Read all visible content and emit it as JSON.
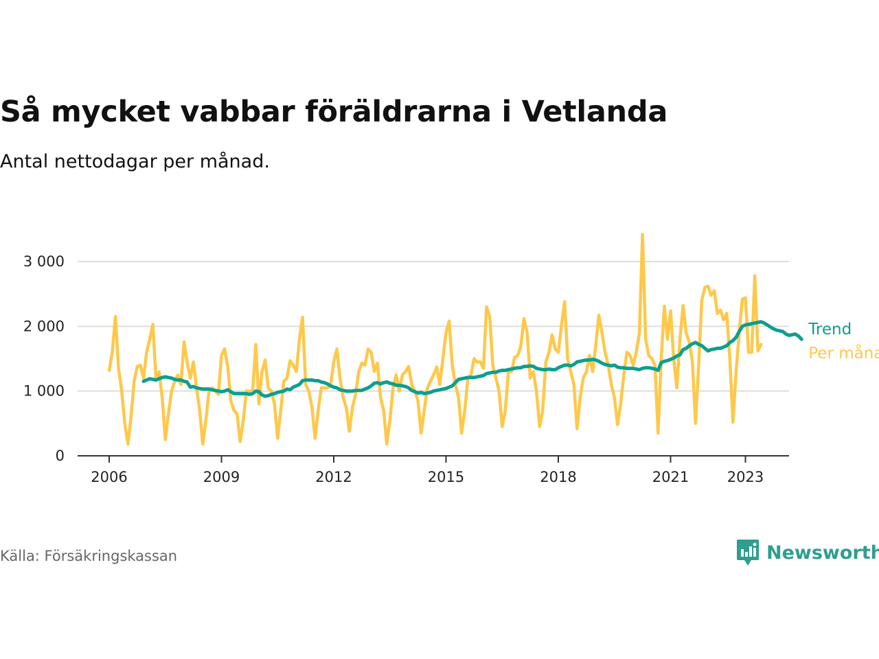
{
  "title": "Så mycket vabbar föräldrarna i Vetlanda",
  "subtitle": "Antal nettodagar per månad.",
  "source": "Källa: Försäkringskassan",
  "brand": {
    "name": "Newsworthy",
    "icon": "newsworthy-logo-icon",
    "color": "#2f9e8f"
  },
  "colors": {
    "trend": "#0e9e8e",
    "per_month": "#ffc84a",
    "grid": "#dddddd",
    "axis": "#333333"
  },
  "chart_data": {
    "type": "line",
    "title": "Så mycket vabbar föräldrarna i Vetlanda",
    "subtitle": "Antal nettodagar per månad.",
    "xlabel": "",
    "ylabel": "",
    "x_start": "2006-01",
    "x_interval": "month",
    "x_ticks": [
      2006,
      2009,
      2012,
      2015,
      2018,
      2021,
      2023
    ],
    "x_tick_labels": [
      "2006",
      "2009",
      "2012",
      "2015",
      "2018",
      "2021",
      "2023"
    ],
    "y_ticks": [
      0,
      1000,
      2000,
      3000
    ],
    "y_tick_labels": [
      "0",
      "1 000",
      "2 000",
      "3 000"
    ],
    "ylim": [
      0,
      3000
    ],
    "grid": true,
    "legend": "series labels at right end of lines",
    "series": [
      {
        "name": "Trend",
        "color": "#0e9e8e",
        "start": "2006-12",
        "values": [
          1150,
          1170,
          1190,
          1180,
          1170,
          1190,
          1210,
          1220,
          1210,
          1200,
          1180,
          1170,
          1170,
          1150,
          1140,
          1060,
          1070,
          1050,
          1040,
          1030,
          1030,
          1030,
          1020,
          1010,
          1000,
          990,
          1000,
          1020,
          990,
          960,
          960,
          960,
          960,
          960,
          950,
          960,
          1000,
          990,
          940,
          920,
          930,
          950,
          960,
          980,
          990,
          1000,
          1030,
          1020,
          1060,
          1080,
          1100,
          1160,
          1170,
          1170,
          1170,
          1160,
          1160,
          1140,
          1130,
          1110,
          1080,
          1060,
          1050,
          1020,
          1010,
          1000,
          1000,
          1000,
          1010,
          1010,
          1010,
          1030,
          1050,
          1080,
          1120,
          1130,
          1110,
          1130,
          1140,
          1120,
          1110,
          1090,
          1090,
          1080,
          1070,
          1050,
          1010,
          990,
          970,
          980,
          960,
          970,
          980,
          1000,
          1010,
          1020,
          1030,
          1040,
          1060,
          1080,
          1130,
          1180,
          1190,
          1200,
          1210,
          1210,
          1210,
          1220,
          1230,
          1240,
          1270,
          1280,
          1290,
          1290,
          1310,
          1320,
          1320,
          1330,
          1340,
          1350,
          1360,
          1360,
          1380,
          1380,
          1390,
          1380,
          1350,
          1340,
          1330,
          1330,
          1340,
          1330,
          1330,
          1360,
          1380,
          1400,
          1400,
          1390,
          1410,
          1450,
          1460,
          1470,
          1480,
          1480,
          1490,
          1480,
          1460,
          1430,
          1410,
          1400,
          1390,
          1400,
          1370,
          1360,
          1360,
          1350,
          1350,
          1350,
          1340,
          1330,
          1350,
          1360,
          1360,
          1350,
          1340,
          1320,
          1440,
          1460,
          1470,
          1490,
          1510,
          1540,
          1560,
          1640,
          1660,
          1700,
          1730,
          1750,
          1720,
          1700,
          1660,
          1620,
          1640,
          1650,
          1660,
          1660,
          1680,
          1700,
          1750,
          1780,
          1830,
          1920,
          2000,
          2020,
          2030,
          2040,
          2050,
          2060,
          2070,
          2050,
          2020,
          1990,
          1960,
          1940,
          1930,
          1920,
          1880,
          1860,
          1870,
          1880,
          1850,
          1800
        ]
      },
      {
        "name": "Per månad",
        "color": "#ffc84a",
        "start": "2006-01",
        "values": [
          1320,
          1600,
          2150,
          1350,
          1000,
          500,
          180,
          600,
          1150,
          1380,
          1400,
          1200,
          1600,
          1800,
          2030,
          1200,
          1300,
          900,
          250,
          650,
          1000,
          1150,
          1250,
          1100,
          1760,
          1450,
          1200,
          1450,
          1050,
          700,
          180,
          550,
          1000,
          1050,
          1000,
          950,
          1550,
          1650,
          1380,
          850,
          700,
          650,
          220,
          550,
          1000,
          1000,
          1000,
          1720,
          800,
          1300,
          1480,
          1050,
          1000,
          800,
          270,
          700,
          1150,
          1200,
          1470,
          1400,
          1300,
          1800,
          2140,
          1100,
          1000,
          750,
          270,
          700,
          1050,
          1050,
          1050,
          1100,
          1450,
          1650,
          1200,
          900,
          750,
          380,
          750,
          950,
          1300,
          1430,
          1400,
          1650,
          1600,
          1300,
          1430,
          900,
          700,
          180,
          550,
          1050,
          1250,
          1000,
          1250,
          1300,
          1380,
          1100,
          1000,
          850,
          350,
          700,
          1050,
          1150,
          1250,
          1370,
          1100,
          1500,
          1900,
          2080,
          1400,
          1100,
          900,
          350,
          700,
          1200,
          1250,
          1500,
          1450,
          1450,
          1350,
          2300,
          2150,
          1400,
          1200,
          1000,
          450,
          700,
          1300,
          1300,
          1520,
          1550,
          1700,
          2120,
          1900,
          1200,
          1300,
          1000,
          450,
          700,
          1450,
          1600,
          1870,
          1650,
          1600,
          2000,
          2380,
          1500,
          1300,
          1100,
          420,
          900,
          1200,
          1300,
          1550,
          1300,
          1700,
          2170,
          1900,
          1600,
          1400,
          1100,
          900,
          480,
          800,
          1250,
          1600,
          1550,
          1400,
          1600,
          1900,
          3420,
          1800,
          1550,
          1500,
          1400,
          350,
          1500,
          2310,
          1800,
          2240,
          1500,
          1050,
          1800,
          2320,
          1900,
          1750,
          1450,
          500,
          1400,
          2400,
          2600,
          2620,
          2480,
          2550,
          2200,
          2250,
          2100,
          2200,
          1500,
          520,
          1300,
          1900,
          2420,
          2440,
          1600,
          1600,
          2780,
          1620,
          1720
        ]
      }
    ]
  }
}
